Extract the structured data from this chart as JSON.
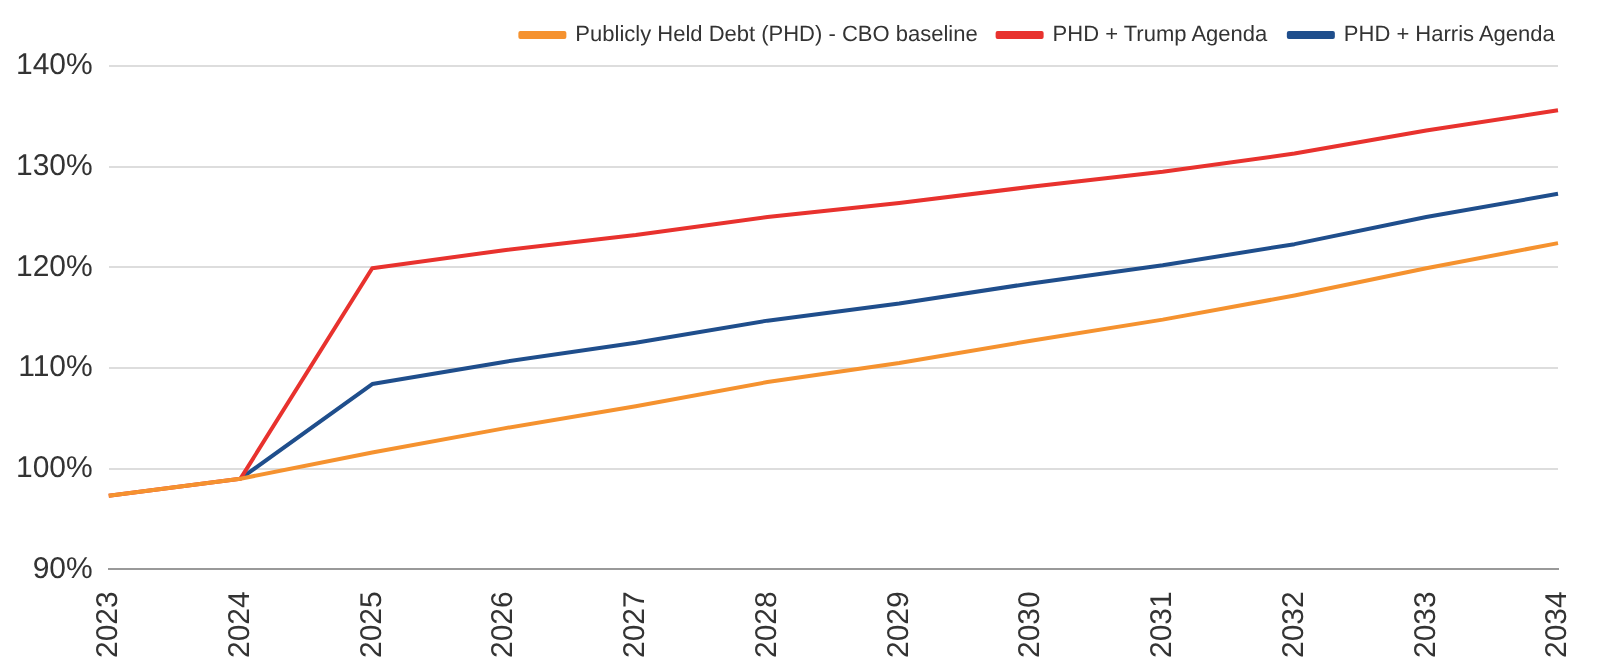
{
  "chart_data": {
    "type": "line",
    "categories": [
      "2023",
      "2024",
      "2025",
      "2026",
      "2027",
      "2028",
      "2029",
      "2030",
      "2031",
      "2032",
      "2033",
      "2034"
    ],
    "series": [
      {
        "name": "Publicly Held Debt (PHD) - CBO baseline",
        "color": "#f5922f",
        "values": [
          97.3,
          99,
          101.6,
          104,
          106.2,
          108.6,
          110.5,
          112.7,
          114.8,
          117.2,
          119.9,
          122.4
        ]
      },
      {
        "name": "PHD + Trump Agenda",
        "color": "#e8322e",
        "values": [
          97.3,
          99,
          119.9,
          121.7,
          123.2,
          125,
          126.4,
          128,
          129.5,
          131.3,
          133.6,
          135.6
        ]
      },
      {
        "name": "PHD + Harris Agenda",
        "color": "#1f4e8c",
        "values": [
          null,
          99,
          108.4,
          110.6,
          112.5,
          114.7,
          116.4,
          118.4,
          120.2,
          122.3,
          125,
          127.3
        ]
      }
    ],
    "ylim": [
      90,
      140
    ],
    "yticks": [
      {
        "value": 90,
        "label": "90%"
      },
      {
        "value": 100,
        "label": "100%"
      },
      {
        "value": 110,
        "label": "110%"
      },
      {
        "value": 120,
        "label": "120%"
      },
      {
        "value": 130,
        "label": "130%"
      },
      {
        "value": 140,
        "label": "140%"
      }
    ],
    "grid": "y",
    "legend": "top right",
    "marker": "none",
    "line_style": "solid"
  }
}
